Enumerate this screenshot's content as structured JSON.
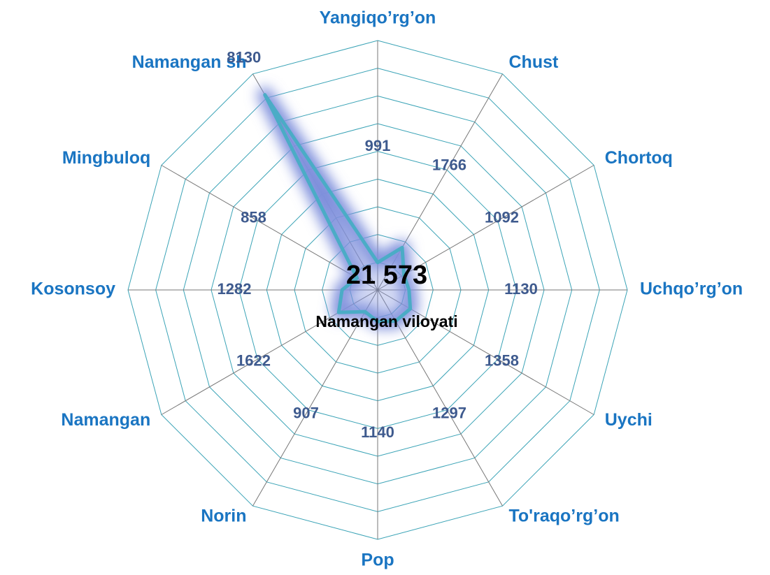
{
  "chart_data": {
    "type": "radar",
    "center_value": "21 573",
    "center_label": "Namangan viloyati",
    "categories": [
      "Yangiqo’rg’on",
      "Chust",
      "Chortoq",
      "Uchqo’rg’on",
      "Uychi",
      "To'raqo’rg’on",
      "Pop",
      "Norin",
      "Namangan",
      "Kosonsoy",
      "Mingbuloq",
      "Namangan sh"
    ],
    "values": [
      991,
      1766,
      1092,
      1130,
      1358,
      1297,
      1140,
      907,
      1622,
      1282,
      858,
      8130
    ],
    "color": "#4bacc6",
    "rlim": [
      0,
      9000
    ],
    "rticks": [
      0,
      1000,
      2000,
      3000,
      4000,
      5000,
      6000,
      7000,
      8000,
      9000
    ],
    "grid": true
  }
}
